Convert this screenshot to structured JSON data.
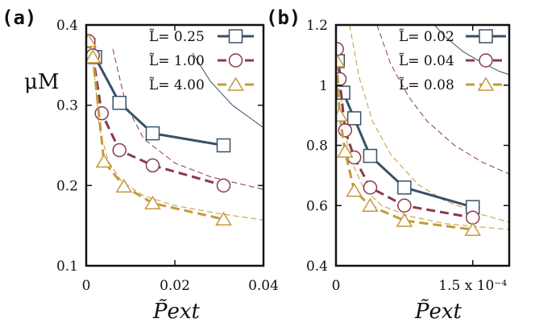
{
  "chart_data": [
    {
      "panel_label": "(a)",
      "type": "line",
      "xlabel": "P̃ext",
      "ylabel": "μM",
      "xlim": [
        0,
        0.04
      ],
      "ylim": [
        0.1,
        0.4
      ],
      "x_ticks": [
        0,
        0.02,
        0.04
      ],
      "x_tick_labels": [
        "0",
        "0.02",
        "0.04"
      ],
      "y_ticks": [
        0.1,
        0.2,
        0.3,
        0.4
      ],
      "y_tick_labels": [
        "0.1",
        "0.2",
        "0.3",
        "0.4"
      ],
      "legend_position": "top-right",
      "series": [
        {
          "name": "L̃= 0.25",
          "color": "#3a5068",
          "marker": "square",
          "dash": "solid",
          "x": [
            0.0005,
            0.002,
            0.0075,
            0.015,
            0.031
          ],
          "y": [
            0.375,
            0.36,
            0.303,
            0.265,
            0.25
          ]
        },
        {
          "name": "L̃= 1.00",
          "color": "#8a3a4a",
          "marker": "circle",
          "dash": "dashed",
          "x": [
            0.0005,
            0.0015,
            0.0035,
            0.0075,
            0.015,
            0.031
          ],
          "y": [
            0.38,
            0.362,
            0.29,
            0.244,
            0.225,
            0.2
          ]
        },
        {
          "name": "L̃= 4.00",
          "color": "#c49a3a",
          "marker": "triangle",
          "dash": "dashed",
          "x": [
            0.0005,
            0.0015,
            0.004,
            0.0085,
            0.015,
            0.031
          ],
          "y": [
            0.38,
            0.36,
            0.23,
            0.199,
            0.178,
            0.158
          ]
        }
      ],
      "reference_curves": [
        {
          "color": "#3a5068",
          "dash": "solid",
          "x": [
            0.024,
            0.028,
            0.033,
            0.038,
            0.04
          ],
          "y": [
            0.365,
            0.33,
            0.3,
            0.28,
            0.272
          ]
        },
        {
          "color": "#8a3a4a",
          "dash": "dashed",
          "x": [
            0.006,
            0.009,
            0.013,
            0.02,
            0.028,
            0.04
          ],
          "y": [
            0.37,
            0.3,
            0.258,
            0.228,
            0.211,
            0.195
          ]
        },
        {
          "color": "#c49a3a",
          "dash": "dashed",
          "x": [
            0.0015,
            0.003,
            0.005,
            0.008,
            0.013,
            0.02,
            0.03,
            0.04
          ],
          "y": [
            0.36,
            0.27,
            0.23,
            0.205,
            0.187,
            0.175,
            0.165,
            0.157
          ]
        }
      ]
    },
    {
      "panel_label": "(b)",
      "type": "line",
      "xlabel": "P̃ext",
      "xlim": [
        0,
        0.00019
      ],
      "ylim": [
        0.4,
        1.2
      ],
      "x_ticks": [
        0,
        0.00015
      ],
      "x_tick_labels": [
        "0",
        "1.5 x 10⁻⁴"
      ],
      "y_ticks": [
        0.4,
        0.6,
        0.8,
        1.0,
        1.2
      ],
      "y_tick_labels": [
        "0.4",
        "0.6",
        "0.8",
        "1",
        "1.2"
      ],
      "legend_position": "top-right",
      "series": [
        {
          "name": "L̃= 0.02",
          "color": "#3a5068",
          "marker": "square",
          "dash": "solid",
          "x": [
            2e-06,
            8e-06,
            2e-05,
            3.75e-05,
            7.5e-05,
            0.00015
          ],
          "y": [
            1.08,
            0.975,
            0.89,
            0.765,
            0.66,
            0.595
          ]
        },
        {
          "name": "L̃= 0.04",
          "color": "#8a3a4a",
          "marker": "circle",
          "dash": "dashed",
          "x": [
            1e-06,
            4e-06,
            1e-05,
            2e-05,
            3.75e-05,
            7.5e-05,
            0.00015
          ],
          "y": [
            1.12,
            1.02,
            0.85,
            0.76,
            0.66,
            0.6,
            0.56
          ]
        },
        {
          "name": "L̃= 0.08",
          "color": "#c49a3a",
          "marker": "triangle",
          "dash": "dashed",
          "x": [
            1e-06,
            4e-06,
            1e-05,
            2e-05,
            3.75e-05,
            7.5e-05,
            0.00015
          ],
          "y": [
            1.08,
            0.9,
            0.78,
            0.65,
            0.6,
            0.55,
            0.52
          ]
        }
      ],
      "reference_curves": [
        {
          "color": "#3a5068",
          "dash": "solid",
          "x": [
            0.000108,
            0.00012,
            0.00014,
            0.00016,
            0.00018,
            0.00019
          ],
          "y": [
            1.2,
            1.16,
            1.11,
            1.075,
            1.045,
            1.035
          ]
        },
        {
          "color": "#8a3a4a",
          "dash": "dashed",
          "x": [
            4.5e-05,
            6e-05,
            8e-05,
            0.0001,
            0.00013,
            0.00016,
            0.00019
          ],
          "y": [
            1.2,
            1.07,
            0.96,
            0.88,
            0.8,
            0.745,
            0.705
          ]
        },
        {
          "color": "#c49a3a",
          "dash": "dashed",
          "x": [
            1.5e-05,
            2.5e-05,
            4e-05,
            6e-05,
            9e-05,
            0.00012,
            0.00016,
            0.00019
          ],
          "y": [
            1.2,
            1.03,
            0.88,
            0.77,
            0.67,
            0.615,
            0.57,
            0.545
          ]
        },
        {
          "color": "#c49a3a",
          "dash": "dashed",
          "x": [
            3e-06,
            8e-06,
            1.5e-05,
            3e-05,
            5e-05,
            8e-05,
            0.00012,
            0.00019
          ],
          "y": [
            1.05,
            0.88,
            0.76,
            0.66,
            0.6,
            0.565,
            0.54,
            0.52
          ]
        }
      ]
    }
  ]
}
